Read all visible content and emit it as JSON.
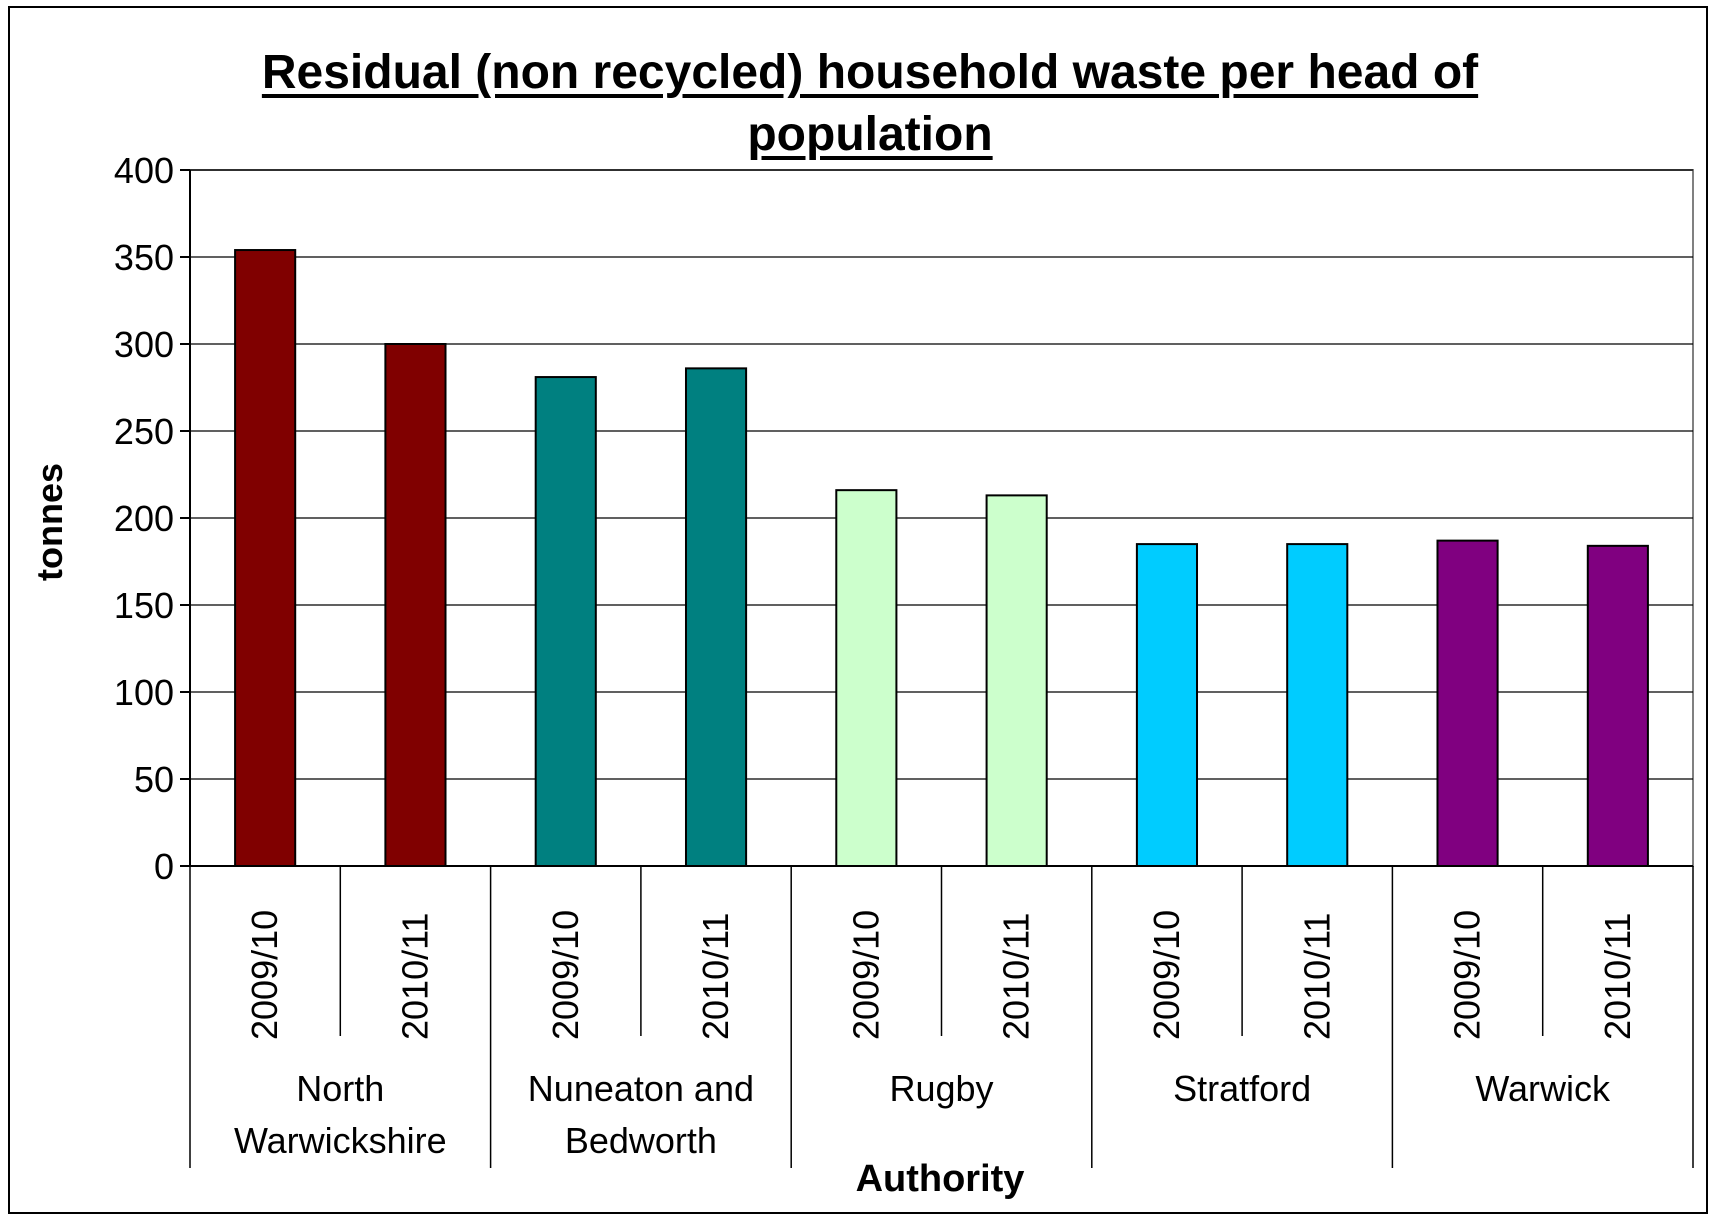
{
  "chart_data": {
    "type": "bar",
    "title": "Residual (non recycled) household waste per head of population",
    "xlabel": "Authority",
    "ylabel": "tonnes",
    "ylim": [
      0,
      400
    ],
    "yticks": [
      0,
      50,
      100,
      150,
      200,
      250,
      300,
      350,
      400
    ],
    "grid": true,
    "legend": "none",
    "groups": [
      {
        "name": "North Warwickshire",
        "label_lines": [
          "North",
          "Warwickshire"
        ],
        "color": "#800000",
        "bars": [
          {
            "category": "2009/10",
            "value": 354
          },
          {
            "category": "2010/11",
            "value": 300
          }
        ]
      },
      {
        "name": "Nuneaton and Bedworth",
        "label_lines": [
          "Nuneaton and",
          "Bedworth"
        ],
        "color": "#008080",
        "bars": [
          {
            "category": "2009/10",
            "value": 281
          },
          {
            "category": "2010/11",
            "value": 286
          }
        ]
      },
      {
        "name": "Rugby",
        "label_lines": [
          "Rugby"
        ],
        "color": "#CCFFCC",
        "bars": [
          {
            "category": "2009/10",
            "value": 216
          },
          {
            "category": "2010/11",
            "value": 213
          }
        ]
      },
      {
        "name": "Stratford",
        "label_lines": [
          "Stratford"
        ],
        "color": "#00CCFF",
        "bars": [
          {
            "category": "2009/10",
            "value": 185
          },
          {
            "category": "2010/11",
            "value": 185
          }
        ]
      },
      {
        "name": "Warwick",
        "label_lines": [
          "Warwick"
        ],
        "color": "#800080",
        "bars": [
          {
            "category": "2009/10",
            "value": 187
          },
          {
            "category": "2010/11",
            "value": 184
          }
        ]
      }
    ]
  }
}
